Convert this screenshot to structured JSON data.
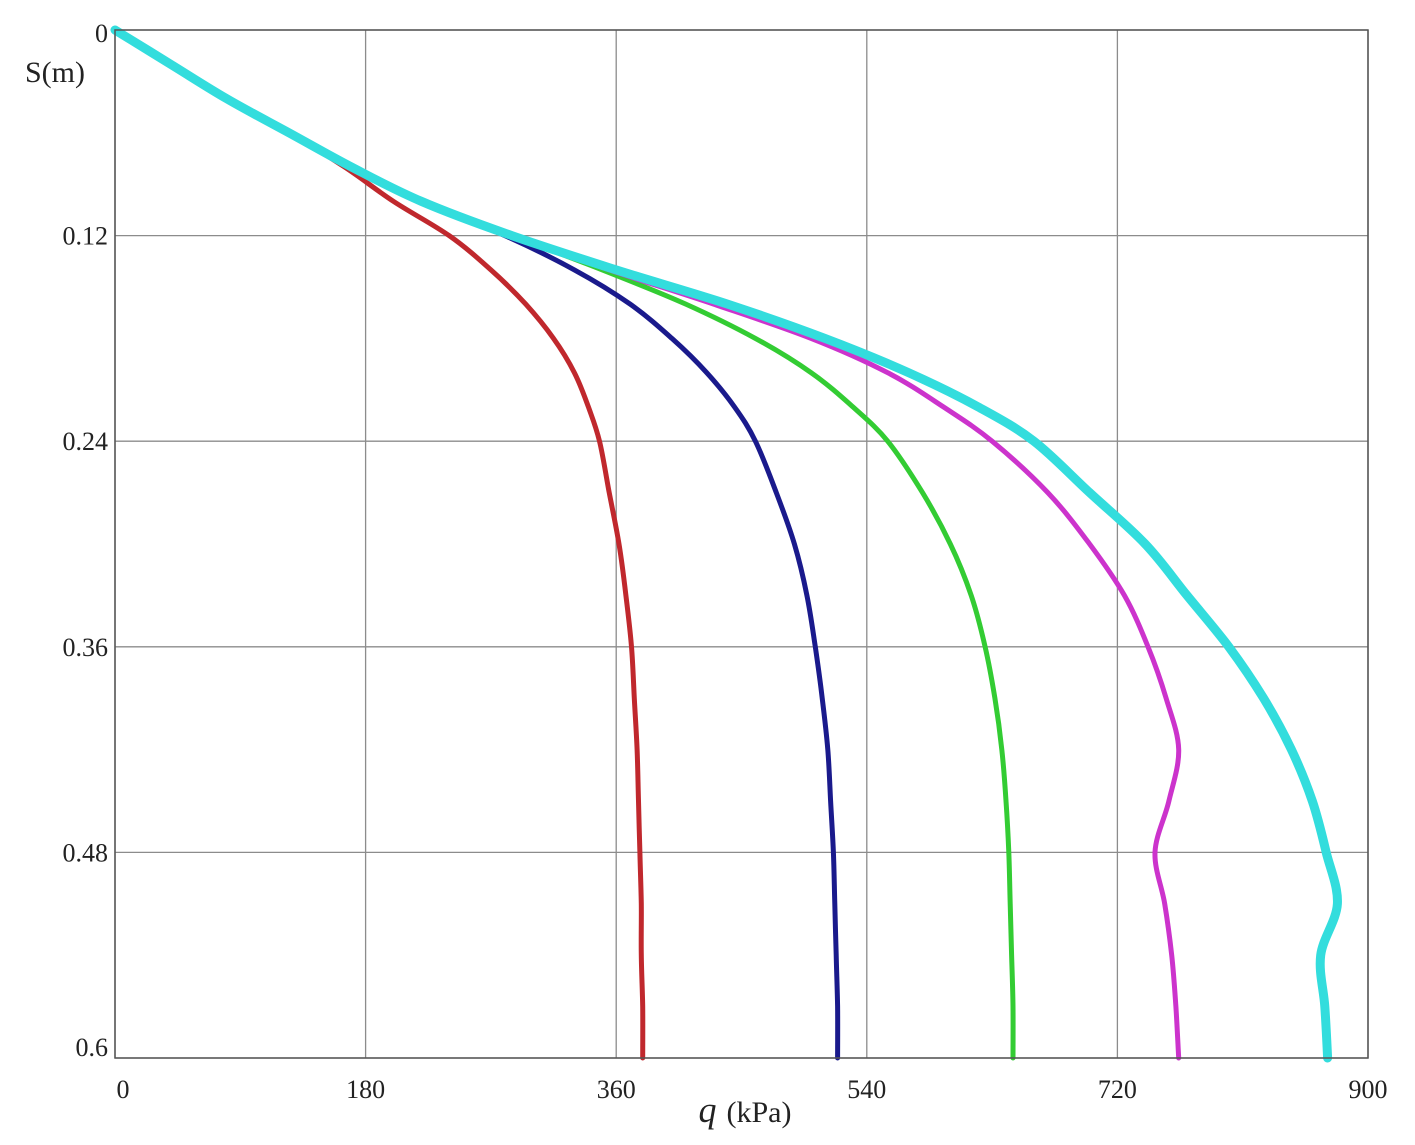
{
  "chart_data": {
    "type": "line",
    "title": "",
    "xlabel_symbol": "q",
    "xlabel_unit": "(kPa)",
    "ylabel": "S(m)",
    "xlim": [
      0,
      900
    ],
    "ylim": [
      0,
      0.6
    ],
    "y_inverted": true,
    "grid": true,
    "legend": "none",
    "x_ticks": [
      "0",
      "180",
      "360",
      "540",
      "720",
      "900"
    ],
    "y_ticks": [
      "0",
      "0.12",
      "0.24",
      "0.36",
      "0.48",
      "0.6"
    ],
    "series": [
      {
        "color": "#c0282d",
        "line_width": 5,
        "points": [
          [
            0,
            0
          ],
          [
            40,
            0.02
          ],
          [
            80,
            0.04
          ],
          [
            125,
            0.06
          ],
          [
            165,
            0.08
          ],
          [
            200,
            0.1
          ],
          [
            240,
            0.12
          ],
          [
            270,
            0.14
          ],
          [
            295,
            0.16
          ],
          [
            315,
            0.18
          ],
          [
            330,
            0.2
          ],
          [
            340,
            0.22
          ],
          [
            348,
            0.24
          ],
          [
            355,
            0.27
          ],
          [
            362,
            0.3
          ],
          [
            367,
            0.33
          ],
          [
            371,
            0.36
          ],
          [
            373,
            0.39
          ],
          [
            375,
            0.42
          ],
          [
            376,
            0.45
          ],
          [
            377,
            0.48
          ],
          [
            378,
            0.51
          ],
          [
            378,
            0.54
          ],
          [
            379,
            0.57
          ],
          [
            379,
            0.6
          ]
        ]
      },
      {
        "color": "#1a1a8c",
        "line_width": 5,
        "points": [
          [
            0,
            0
          ],
          [
            40,
            0.02
          ],
          [
            80,
            0.04
          ],
          [
            125,
            0.06
          ],
          [
            170,
            0.08
          ],
          [
            220,
            0.1
          ],
          [
            280,
            0.12
          ],
          [
            330,
            0.14
          ],
          [
            370,
            0.16
          ],
          [
            400,
            0.18
          ],
          [
            425,
            0.2
          ],
          [
            445,
            0.22
          ],
          [
            460,
            0.24
          ],
          [
            475,
            0.27
          ],
          [
            488,
            0.3
          ],
          [
            497,
            0.33
          ],
          [
            503,
            0.36
          ],
          [
            508,
            0.39
          ],
          [
            512,
            0.42
          ],
          [
            514,
            0.45
          ],
          [
            516,
            0.48
          ],
          [
            517,
            0.51
          ],
          [
            518,
            0.54
          ],
          [
            519,
            0.57
          ],
          [
            519,
            0.6
          ]
        ]
      },
      {
        "color": "#33cc33",
        "line_width": 5,
        "points": [
          [
            0,
            0
          ],
          [
            40,
            0.02
          ],
          [
            80,
            0.04
          ],
          [
            125,
            0.06
          ],
          [
            170,
            0.08
          ],
          [
            220,
            0.1
          ],
          [
            285,
            0.12
          ],
          [
            350,
            0.14
          ],
          [
            410,
            0.16
          ],
          [
            460,
            0.18
          ],
          [
            500,
            0.2
          ],
          [
            530,
            0.22
          ],
          [
            555,
            0.24
          ],
          [
            580,
            0.27
          ],
          [
            600,
            0.3
          ],
          [
            615,
            0.33
          ],
          [
            625,
            0.36
          ],
          [
            632,
            0.39
          ],
          [
            637,
            0.42
          ],
          [
            640,
            0.45
          ],
          [
            642,
            0.48
          ],
          [
            643,
            0.51
          ],
          [
            644,
            0.54
          ],
          [
            645,
            0.57
          ],
          [
            645,
            0.6
          ]
        ]
      },
      {
        "color": "#cc33cc",
        "line_width": 5,
        "points": [
          [
            0,
            0
          ],
          [
            40,
            0.02
          ],
          [
            80,
            0.04
          ],
          [
            125,
            0.06
          ],
          [
            170,
            0.08
          ],
          [
            220,
            0.1
          ],
          [
            285,
            0.12
          ],
          [
            355,
            0.14
          ],
          [
            430,
            0.16
          ],
          [
            500,
            0.18
          ],
          [
            555,
            0.2
          ],
          [
            595,
            0.22
          ],
          [
            630,
            0.24
          ],
          [
            670,
            0.27
          ],
          [
            700,
            0.3
          ],
          [
            725,
            0.33
          ],
          [
            742,
            0.36
          ],
          [
            755,
            0.39
          ],
          [
            764,
            0.42
          ],
          [
            757,
            0.45
          ],
          [
            747,
            0.48
          ],
          [
            754,
            0.51
          ],
          [
            759,
            0.54
          ],
          [
            762,
            0.57
          ],
          [
            764,
            0.6
          ]
        ]
      },
      {
        "color": "#33dddd",
        "line_width": 9,
        "points": [
          [
            0,
            0
          ],
          [
            40,
            0.02
          ],
          [
            80,
            0.04
          ],
          [
            125,
            0.06
          ],
          [
            170,
            0.08
          ],
          [
            220,
            0.1
          ],
          [
            285,
            0.12
          ],
          [
            360,
            0.14
          ],
          [
            440,
            0.16
          ],
          [
            510,
            0.18
          ],
          [
            570,
            0.2
          ],
          [
            620,
            0.22
          ],
          [
            660,
            0.24
          ],
          [
            700,
            0.27
          ],
          [
            740,
            0.3
          ],
          [
            770,
            0.33
          ],
          [
            800,
            0.36
          ],
          [
            825,
            0.39
          ],
          [
            845,
            0.42
          ],
          [
            860,
            0.45
          ],
          [
            870,
            0.48
          ],
          [
            878,
            0.51
          ],
          [
            866,
            0.54
          ],
          [
            869,
            0.57
          ],
          [
            871,
            0.6
          ]
        ]
      }
    ]
  }
}
